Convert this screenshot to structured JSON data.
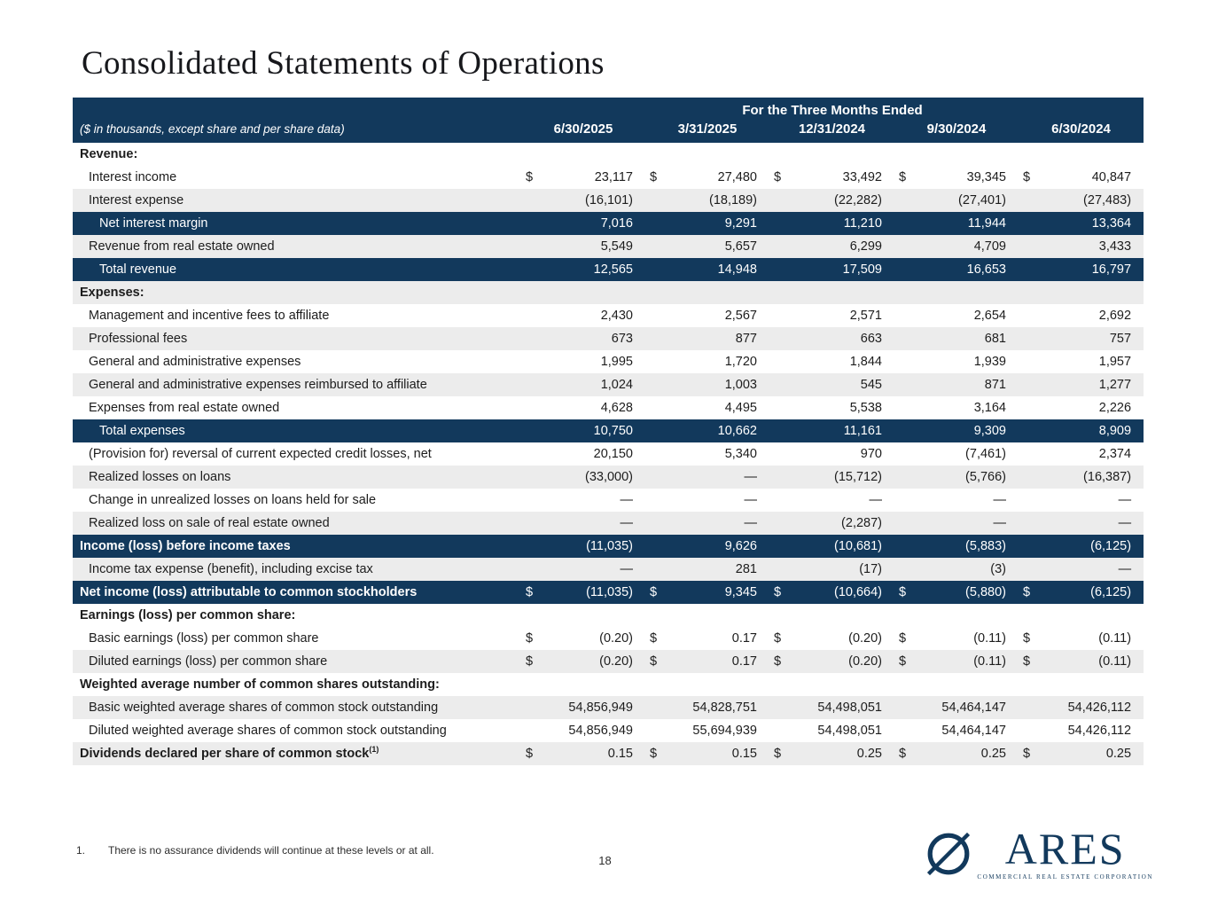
{
  "page": {
    "title": "Consolidated Statements of Operations",
    "page_number": "18",
    "footnote": {
      "marker": "1.",
      "text": "There is no assurance dividends will continue at these levels or at all."
    }
  },
  "colors": {
    "navy": "#12395c",
    "gray_row": "#ececec",
    "white_row": "#ffffff"
  },
  "logo": {
    "name": "ARES",
    "tagline": "COMMERCIAL REAL ESTATE CORPORATION"
  },
  "table": {
    "currency_symbol": "$",
    "note": "($ in thousands, except share and per share data)",
    "group_header": "For the Three Months Ended",
    "columns": [
      "6/30/2025",
      "3/31/2025",
      "12/31/2024",
      "9/30/2024",
      "6/30/2024"
    ],
    "rows": [
      {
        "label": "Revenue:",
        "variant": "white",
        "indent": 0,
        "bold": true,
        "dollar": false,
        "values": []
      },
      {
        "label": "Interest income",
        "variant": "white",
        "indent": 1,
        "bold": false,
        "dollar": true,
        "values": [
          "23,117",
          "27,480",
          "33,492",
          "39,345",
          "40,847"
        ]
      },
      {
        "label": "Interest expense",
        "variant": "gray",
        "indent": 1,
        "bold": false,
        "dollar": false,
        "values": [
          "(16,101)",
          "(18,189)",
          "(22,282)",
          "(27,401)",
          "(27,483)"
        ]
      },
      {
        "label": "Net interest margin",
        "variant": "navy",
        "indent": 2,
        "bold": false,
        "dollar": false,
        "values": [
          "7,016",
          "9,291",
          "11,210",
          "11,944",
          "13,364"
        ]
      },
      {
        "label": "Revenue from real estate owned",
        "variant": "gray",
        "indent": 1,
        "bold": false,
        "dollar": false,
        "values": [
          "5,549",
          "5,657",
          "6,299",
          "4,709",
          "3,433"
        ]
      },
      {
        "label": "Total revenue",
        "variant": "navy",
        "indent": 2,
        "bold": false,
        "dollar": false,
        "values": [
          "12,565",
          "14,948",
          "17,509",
          "16,653",
          "16,797"
        ]
      },
      {
        "label": "Expenses:",
        "variant": "gray",
        "indent": 0,
        "bold": true,
        "dollar": false,
        "values": []
      },
      {
        "label": "Management and incentive fees to affiliate",
        "variant": "white",
        "indent": 1,
        "bold": false,
        "dollar": false,
        "values": [
          "2,430",
          "2,567",
          "2,571",
          "2,654",
          "2,692"
        ]
      },
      {
        "label": "Professional fees",
        "variant": "gray",
        "indent": 1,
        "bold": false,
        "dollar": false,
        "values": [
          "673",
          "877",
          "663",
          "681",
          "757"
        ]
      },
      {
        "label": "General and administrative expenses",
        "variant": "white",
        "indent": 1,
        "bold": false,
        "dollar": false,
        "values": [
          "1,995",
          "1,720",
          "1,844",
          "1,939",
          "1,957"
        ]
      },
      {
        "label": "General and administrative expenses reimbursed to affiliate",
        "variant": "gray",
        "indent": 1,
        "bold": false,
        "dollar": false,
        "values": [
          "1,024",
          "1,003",
          "545",
          "871",
          "1,277"
        ]
      },
      {
        "label": "Expenses from real estate owned",
        "variant": "white",
        "indent": 1,
        "bold": false,
        "dollar": false,
        "values": [
          "4,628",
          "4,495",
          "5,538",
          "3,164",
          "2,226"
        ]
      },
      {
        "label": "Total expenses",
        "variant": "navy",
        "indent": 2,
        "bold": false,
        "dollar": false,
        "values": [
          "10,750",
          "10,662",
          "11,161",
          "9,309",
          "8,909"
        ]
      },
      {
        "label": "(Provision for) reversal of current expected credit losses, net",
        "variant": "white",
        "indent": 1,
        "bold": false,
        "dollar": false,
        "values": [
          "20,150",
          "5,340",
          "970",
          "(7,461)",
          "2,374"
        ]
      },
      {
        "label": "Realized losses on loans",
        "variant": "gray",
        "indent": 1,
        "bold": false,
        "dollar": false,
        "values": [
          "(33,000)",
          "—",
          "(15,712)",
          "(5,766)",
          "(16,387)"
        ]
      },
      {
        "label": "Change in unrealized losses on loans held for sale",
        "variant": "white",
        "indent": 1,
        "bold": false,
        "dollar": false,
        "values": [
          "—",
          "—",
          "—",
          "—",
          "—"
        ]
      },
      {
        "label": "Realized loss on sale of real estate owned",
        "variant": "gray",
        "indent": 1,
        "bold": false,
        "dollar": false,
        "values": [
          "—",
          "—",
          "(2,287)",
          "—",
          "—"
        ]
      },
      {
        "label": "Income (loss) before income taxes",
        "variant": "navy",
        "indent": 0,
        "bold": true,
        "dollar": false,
        "values": [
          "(11,035)",
          "9,626",
          "(10,681)",
          "(5,883)",
          "(6,125)"
        ]
      },
      {
        "label": "Income tax expense (benefit), including excise tax",
        "variant": "gray",
        "indent": 1,
        "bold": false,
        "dollar": false,
        "values": [
          "—",
          "281",
          "(17)",
          "(3)",
          "—"
        ]
      },
      {
        "label": "Net income (loss) attributable to common stockholders",
        "variant": "navy",
        "indent": 0,
        "bold": true,
        "dollar": true,
        "values": [
          "(11,035)",
          "9,345",
          "(10,664)",
          "(5,880)",
          "(6,125)"
        ]
      },
      {
        "label": "Earnings (loss) per common share:",
        "variant": "white",
        "indent": 0,
        "bold": true,
        "dollar": false,
        "values": []
      },
      {
        "label": "Basic earnings (loss) per common share",
        "variant": "white",
        "indent": 1,
        "bold": false,
        "dollar": true,
        "values": [
          "(0.20)",
          "0.17",
          "(0.20)",
          "(0.11)",
          "(0.11)"
        ]
      },
      {
        "label": "Diluted earnings (loss) per common share",
        "variant": "gray",
        "indent": 1,
        "bold": false,
        "dollar": true,
        "values": [
          "(0.20)",
          "0.17",
          "(0.20)",
          "(0.11)",
          "(0.11)"
        ]
      },
      {
        "label": "Weighted average number of common shares outstanding:",
        "variant": "white",
        "indent": 0,
        "bold": true,
        "dollar": false,
        "values": []
      },
      {
        "label": "Basic weighted average shares of common stock outstanding",
        "variant": "gray",
        "indent": 1,
        "bold": false,
        "dollar": false,
        "values": [
          "54,856,949",
          "54,828,751",
          "54,498,051",
          "54,464,147",
          "54,426,112"
        ]
      },
      {
        "label": "Diluted weighted average shares of common stock outstanding",
        "variant": "white",
        "indent": 1,
        "bold": false,
        "dollar": false,
        "values": [
          "54,856,949",
          "55,694,939",
          "54,498,051",
          "54,464,147",
          "54,426,112"
        ]
      },
      {
        "label": "Dividends declared per share of common stock",
        "sup": "(1)",
        "variant": "gray",
        "indent": 0,
        "bold": true,
        "dollar": true,
        "values": [
          "0.15",
          "0.15",
          "0.25",
          "0.25",
          "0.25"
        ]
      }
    ]
  }
}
